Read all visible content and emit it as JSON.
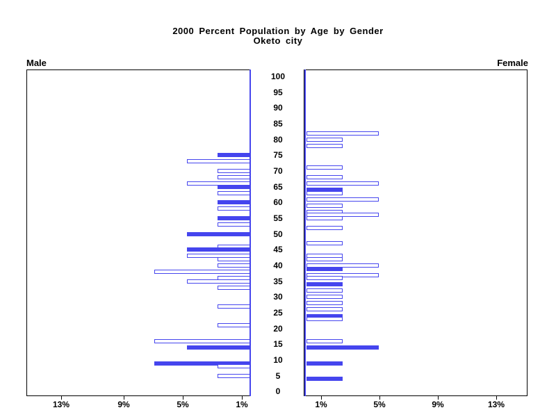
{
  "title": {
    "line1": "2000 Percent Population by Age by Gender",
    "line2": "Oketo city"
  },
  "panels": {
    "left_label": "Male",
    "right_label": "Female"
  },
  "colors": {
    "bar_blue": "#4545ee",
    "frame_black": "#000000",
    "bar_fill_empty": "#ffffff"
  },
  "age_tick_labels": [
    "100",
    "95",
    "90",
    "85",
    "80",
    "75",
    "70",
    "65",
    "60",
    "55",
    "50",
    "45",
    "40",
    "35",
    "30",
    "25",
    "20",
    "15",
    "10",
    "5",
    "0"
  ],
  "x_axis": {
    "male_tick_labels": [
      "13%",
      "9%",
      "5%",
      "1%"
    ],
    "female_tick_labels": [
      "1%",
      "5%",
      "9%",
      "13%"
    ]
  },
  "chart_data": {
    "type": "bar",
    "variant": "population-pyramid",
    "title": "2000 Percent Population by Age by Gender",
    "subtitle": "Oketo city",
    "age_axis": {
      "min": 0,
      "max": 100,
      "tick_step": 5
    },
    "pct_axis": {
      "min": 0,
      "max": 15,
      "tick_values": [
        1,
        5,
        9,
        13
      ],
      "unit": "%"
    },
    "legend_note": "solid bars filled blue, others outlined",
    "series": [
      {
        "name": "Male",
        "side": "left",
        "bars": [
          {
            "age": 75,
            "pct": 2.2,
            "solid": true
          },
          {
            "age": 73,
            "pct": 4.3,
            "solid": false
          },
          {
            "age": 70,
            "pct": 2.2,
            "solid": false
          },
          {
            "age": 68,
            "pct": 2.2,
            "solid": false
          },
          {
            "age": 66,
            "pct": 4.3,
            "solid": false
          },
          {
            "age": 65,
            "pct": 2.2,
            "solid": true
          },
          {
            "age": 63,
            "pct": 2.2,
            "solid": false
          },
          {
            "age": 60,
            "pct": 2.2,
            "solid": true
          },
          {
            "age": 58,
            "pct": 2.2,
            "solid": false
          },
          {
            "age": 55,
            "pct": 2.2,
            "solid": true
          },
          {
            "age": 53,
            "pct": 2.2,
            "solid": false
          },
          {
            "age": 50,
            "pct": 4.3,
            "solid": true
          },
          {
            "age": 46,
            "pct": 2.2,
            "solid": false
          },
          {
            "age": 45,
            "pct": 4.3,
            "solid": true
          },
          {
            "age": 43,
            "pct": 4.3,
            "solid": false
          },
          {
            "age": 42,
            "pct": 2.2,
            "solid": false
          },
          {
            "age": 40,
            "pct": 2.2,
            "solid": false
          },
          {
            "age": 38,
            "pct": 6.5,
            "solid": false
          },
          {
            "age": 36,
            "pct": 2.2,
            "solid": false
          },
          {
            "age": 35,
            "pct": 4.3,
            "solid": false
          },
          {
            "age": 33,
            "pct": 2.2,
            "solid": false
          },
          {
            "age": 27,
            "pct": 2.2,
            "solid": false
          },
          {
            "age": 21,
            "pct": 2.2,
            "solid": false
          },
          {
            "age": 16,
            "pct": 6.5,
            "solid": false
          },
          {
            "age": 14,
            "pct": 4.3,
            "solid": true
          },
          {
            "age": 9,
            "pct": 6.5,
            "solid": true
          },
          {
            "age": 8,
            "pct": 2.2,
            "solid": false
          },
          {
            "age": 5,
            "pct": 2.2,
            "solid": false
          }
        ]
      },
      {
        "name": "Female",
        "side": "right",
        "bars": [
          {
            "age": 82,
            "pct": 5.0,
            "solid": false
          },
          {
            "age": 80,
            "pct": 2.5,
            "solid": false
          },
          {
            "age": 78,
            "pct": 2.5,
            "solid": false
          },
          {
            "age": 71,
            "pct": 2.5,
            "solid": false
          },
          {
            "age": 68,
            "pct": 2.5,
            "solid": false
          },
          {
            "age": 66,
            "pct": 5.0,
            "solid": false
          },
          {
            "age": 64,
            "pct": 2.5,
            "solid": true
          },
          {
            "age": 63,
            "pct": 2.5,
            "solid": false
          },
          {
            "age": 61,
            "pct": 5.0,
            "solid": false
          },
          {
            "age": 59,
            "pct": 2.5,
            "solid": false
          },
          {
            "age": 57,
            "pct": 2.5,
            "solid": false
          },
          {
            "age": 56,
            "pct": 5.0,
            "solid": false
          },
          {
            "age": 55,
            "pct": 2.5,
            "solid": false
          },
          {
            "age": 52,
            "pct": 2.5,
            "solid": false
          },
          {
            "age": 47,
            "pct": 2.5,
            "solid": false
          },
          {
            "age": 43,
            "pct": 2.5,
            "solid": false
          },
          {
            "age": 42,
            "pct": 2.5,
            "solid": false
          },
          {
            "age": 40,
            "pct": 5.0,
            "solid": false
          },
          {
            "age": 39,
            "pct": 2.5,
            "solid": true
          },
          {
            "age": 37,
            "pct": 5.0,
            "solid": false
          },
          {
            "age": 36,
            "pct": 2.5,
            "solid": false
          },
          {
            "age": 34,
            "pct": 2.5,
            "solid": true
          },
          {
            "age": 32,
            "pct": 2.5,
            "solid": false
          },
          {
            "age": 30,
            "pct": 2.5,
            "solid": false
          },
          {
            "age": 28,
            "pct": 2.5,
            "solid": false
          },
          {
            "age": 26,
            "pct": 2.5,
            "solid": false
          },
          {
            "age": 24,
            "pct": 2.5,
            "solid": true
          },
          {
            "age": 23,
            "pct": 2.5,
            "solid": false
          },
          {
            "age": 16,
            "pct": 2.5,
            "solid": false
          },
          {
            "age": 14,
            "pct": 5.0,
            "solid": true
          },
          {
            "age": 9,
            "pct": 2.5,
            "solid": true
          },
          {
            "age": 4,
            "pct": 2.5,
            "solid": true
          }
        ]
      }
    ]
  }
}
